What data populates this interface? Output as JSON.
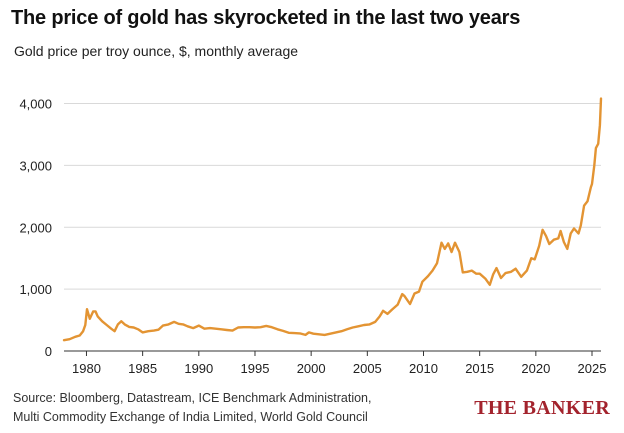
{
  "header": {
    "title": "The price of gold has skyrocketed in the last two years",
    "subtitle": "Gold price per troy ounce, $, monthly average"
  },
  "footer": {
    "source_line1": "Source: Bloomberg, Datastream, ICE Benchmark Administration,",
    "source_line2": "Multi Commodity Exchange of India Limited, World Gold Council",
    "brand": "THE BANKER"
  },
  "colors": {
    "line": "#e39433",
    "brand": "#a3232d",
    "grid": "#d9d9d9",
    "axis": "#333333"
  },
  "chart_data": {
    "type": "line",
    "title": "The price of gold has skyrocketed in the last two years",
    "subtitle": "Gold price per troy ounce, $, monthly average",
    "xlabel": "",
    "ylabel": "",
    "xlim": [
      1978,
      2025.8
    ],
    "ylim": [
      0,
      4300
    ],
    "grid": true,
    "x_ticks": [
      1980,
      1985,
      1990,
      1995,
      2000,
      2005,
      2010,
      2015,
      2020,
      2025
    ],
    "y_ticks": [
      0,
      1000,
      2000,
      3000,
      4000
    ],
    "y_tick_labels": [
      "0",
      "1,000",
      "2,000",
      "3,000",
      "4,000"
    ],
    "series": [
      {
        "values": [
          [
            1978.0,
            175
          ],
          [
            1978.5,
            190
          ],
          [
            1979.0,
            230
          ],
          [
            1979.4,
            250
          ],
          [
            1979.7,
            320
          ],
          [
            1979.9,
            420
          ],
          [
            1980.05,
            675
          ],
          [
            1980.3,
            520
          ],
          [
            1980.6,
            640
          ],
          [
            1980.8,
            640
          ],
          [
            1981.0,
            560
          ],
          [
            1981.4,
            480
          ],
          [
            1981.8,
            420
          ],
          [
            1982.2,
            360
          ],
          [
            1982.5,
            320
          ],
          [
            1982.8,
            430
          ],
          [
            1983.1,
            480
          ],
          [
            1983.4,
            430
          ],
          [
            1983.8,
            390
          ],
          [
            1984.2,
            380
          ],
          [
            1984.6,
            350
          ],
          [
            1985.0,
            300
          ],
          [
            1985.5,
            320
          ],
          [
            1986.0,
            330
          ],
          [
            1986.4,
            345
          ],
          [
            1986.8,
            410
          ],
          [
            1987.3,
            430
          ],
          [
            1987.8,
            470
          ],
          [
            1988.2,
            440
          ],
          [
            1988.6,
            430
          ],
          [
            1989.0,
            400
          ],
          [
            1989.5,
            370
          ],
          [
            1990.0,
            410
          ],
          [
            1990.5,
            360
          ],
          [
            1991.0,
            370
          ],
          [
            1991.5,
            360
          ],
          [
            1992.0,
            350
          ],
          [
            1992.5,
            340
          ],
          [
            1993.0,
            330
          ],
          [
            1993.5,
            380
          ],
          [
            1994.0,
            385
          ],
          [
            1994.5,
            385
          ],
          [
            1995.0,
            380
          ],
          [
            1995.5,
            385
          ],
          [
            1996.0,
            405
          ],
          [
            1996.5,
            385
          ],
          [
            1997.0,
            350
          ],
          [
            1997.5,
            325
          ],
          [
            1998.0,
            295
          ],
          [
            1998.5,
            290
          ],
          [
            1999.0,
            285
          ],
          [
            1999.5,
            260
          ],
          [
            1999.8,
            300
          ],
          [
            2000.2,
            280
          ],
          [
            2000.7,
            270
          ],
          [
            2001.2,
            260
          ],
          [
            2001.7,
            280
          ],
          [
            2002.2,
            300
          ],
          [
            2002.7,
            320
          ],
          [
            2003.2,
            350
          ],
          [
            2003.7,
            380
          ],
          [
            2004.2,
            400
          ],
          [
            2004.7,
            420
          ],
          [
            2005.2,
            430
          ],
          [
            2005.7,
            470
          ],
          [
            2006.1,
            560
          ],
          [
            2006.4,
            650
          ],
          [
            2006.8,
            600
          ],
          [
            2007.2,
            670
          ],
          [
            2007.7,
            750
          ],
          [
            2008.1,
            920
          ],
          [
            2008.3,
            890
          ],
          [
            2008.8,
            760
          ],
          [
            2009.2,
            930
          ],
          [
            2009.6,
            960
          ],
          [
            2009.9,
            1120
          ],
          [
            2010.4,
            1210
          ],
          [
            2010.8,
            1300
          ],
          [
            2011.2,
            1420
          ],
          [
            2011.6,
            1750
          ],
          [
            2011.9,
            1650
          ],
          [
            2012.2,
            1740
          ],
          [
            2012.5,
            1600
          ],
          [
            2012.8,
            1750
          ],
          [
            2013.2,
            1600
          ],
          [
            2013.5,
            1270
          ],
          [
            2013.9,
            1280
          ],
          [
            2014.3,
            1300
          ],
          [
            2014.7,
            1250
          ],
          [
            2015.0,
            1250
          ],
          [
            2015.5,
            1170
          ],
          [
            2015.9,
            1070
          ],
          [
            2016.2,
            1240
          ],
          [
            2016.5,
            1340
          ],
          [
            2016.9,
            1180
          ],
          [
            2017.3,
            1260
          ],
          [
            2017.8,
            1280
          ],
          [
            2018.2,
            1330
          ],
          [
            2018.7,
            1200
          ],
          [
            2019.2,
            1300
          ],
          [
            2019.6,
            1500
          ],
          [
            2019.9,
            1480
          ],
          [
            2020.3,
            1700
          ],
          [
            2020.6,
            1960
          ],
          [
            2020.9,
            1860
          ],
          [
            2021.2,
            1730
          ],
          [
            2021.6,
            1800
          ],
          [
            2022.0,
            1820
          ],
          [
            2022.2,
            1940
          ],
          [
            2022.5,
            1760
          ],
          [
            2022.8,
            1650
          ],
          [
            2023.1,
            1900
          ],
          [
            2023.4,
            1980
          ],
          [
            2023.8,
            1900
          ],
          [
            2024.0,
            2030
          ],
          [
            2024.3,
            2350
          ],
          [
            2024.6,
            2420
          ],
          [
            2024.9,
            2650
          ],
          [
            2025.0,
            2700
          ],
          [
            2025.2,
            3000
          ],
          [
            2025.35,
            3280
          ],
          [
            2025.55,
            3350
          ],
          [
            2025.7,
            3650
          ],
          [
            2025.8,
            4080
          ]
        ]
      }
    ]
  }
}
